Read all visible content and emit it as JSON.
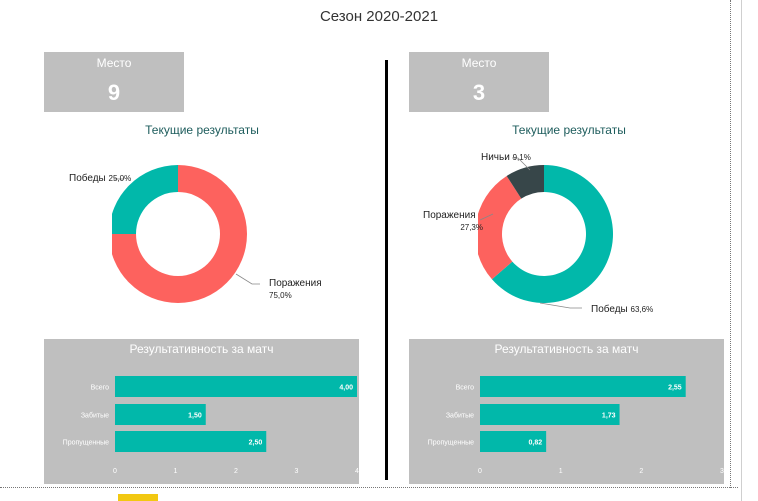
{
  "page": {
    "title": "Сезон 2020-2021"
  },
  "colors": {
    "teal": "#01b8aa",
    "red": "#fd625e",
    "dark": "#374649",
    "gray_card": "#bfbfbf"
  },
  "left": {
    "place_label": "Место",
    "place_value": "9",
    "donut_title": "Текущие результаты",
    "bar_title": "Результативность за матч",
    "chart_data": [
      {
        "type": "pie",
        "title": "Текущие результаты",
        "slices": [
          {
            "label": "Поражения",
            "value": 75.0,
            "display": "75,0%",
            "color": "#fd625e"
          },
          {
            "label": "Победы",
            "value": 25.0,
            "display": "25,0%",
            "color": "#01b8aa"
          }
        ]
      },
      {
        "type": "bar",
        "orientation": "horizontal",
        "title": "Результативность за матч",
        "categories": [
          "Всего",
          "Забитые",
          "Пропущенные"
        ],
        "values": [
          4.0,
          1.5,
          2.5
        ],
        "value_labels": [
          "4,00",
          "1,50",
          "2,50"
        ],
        "xlim": [
          0,
          4
        ],
        "ticks": [
          "0",
          "1",
          "2",
          "3",
          "4"
        ]
      }
    ]
  },
  "right": {
    "place_label": "Место",
    "place_value": "3",
    "donut_title": "Текущие результаты",
    "bar_title": "Результативность за матч",
    "chart_data": [
      {
        "type": "pie",
        "title": "Текущие результаты",
        "slices": [
          {
            "label": "Победы",
            "value": 63.6,
            "display": "63,6%",
            "color": "#01b8aa"
          },
          {
            "label": "Поражения",
            "value": 27.3,
            "display": "27,3%",
            "color": "#fd625e"
          },
          {
            "label": "Ничьи",
            "value": 9.1,
            "display": "9,1%",
            "color": "#374649"
          }
        ]
      },
      {
        "type": "bar",
        "orientation": "horizontal",
        "title": "Результативность за матч",
        "categories": [
          "Всего",
          "Забитые",
          "Пропущенные"
        ],
        "values": [
          2.55,
          1.73,
          0.82
        ],
        "value_labels": [
          "2,55",
          "1,73",
          "0,82"
        ],
        "xlim": [
          0,
          3
        ],
        "ticks": [
          "0",
          "1",
          "2",
          "3"
        ]
      }
    ]
  }
}
